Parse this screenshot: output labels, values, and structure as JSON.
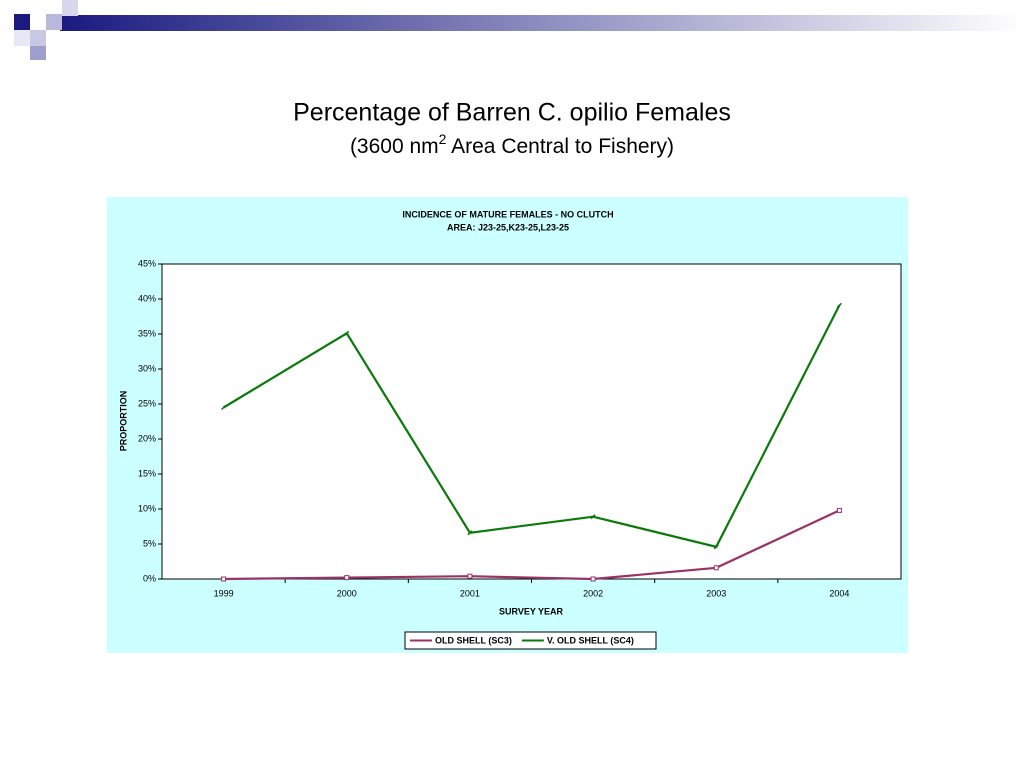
{
  "slide": {
    "title": "Percentage of Barren C. opilio Females",
    "subtitle": [
      "(3600 nm",
      "2",
      " Area Central to Fishery)"
    ]
  },
  "chart_data": {
    "type": "line",
    "title": "INCIDENCE OF MATURE FEMALES - NO CLUTCH",
    "subtitle": "AREA: J23-25,K23-25,L23-25",
    "x_label": "SURVEY YEAR",
    "y_label": "PROPORTION",
    "categories": [
      "1999",
      "2000",
      "2001",
      "2002",
      "2003",
      "2004"
    ],
    "series": [
      {
        "name": "OLD SHELL (SC3)",
        "color": "#993366",
        "values": [
          0,
          0.2,
          0.4,
          0,
          1.6,
          9.8
        ]
      },
      {
        "name": "V. OLD SHELL (SC4)",
        "color": "#0a7a0a",
        "values": [
          24.5,
          35.1,
          6.6,
          8.9,
          4.6,
          39.1
        ]
      }
    ],
    "ylim": [
      0,
      45
    ],
    "yticks": [
      {
        "value": 0,
        "label": "0%"
      },
      {
        "value": 5,
        "label": "5%"
      },
      {
        "value": 10,
        "label": "10%"
      },
      {
        "value": 15,
        "label": "15%"
      },
      {
        "value": 20,
        "label": "20%"
      },
      {
        "value": 25,
        "label": "25%"
      },
      {
        "value": 30,
        "label": "30%"
      },
      {
        "value": 35,
        "label": "35%"
      },
      {
        "value": 40,
        "label": "40%"
      },
      {
        "value": 45,
        "label": "45%"
      }
    ],
    "legend": "bottom",
    "background": "#ccffff"
  }
}
